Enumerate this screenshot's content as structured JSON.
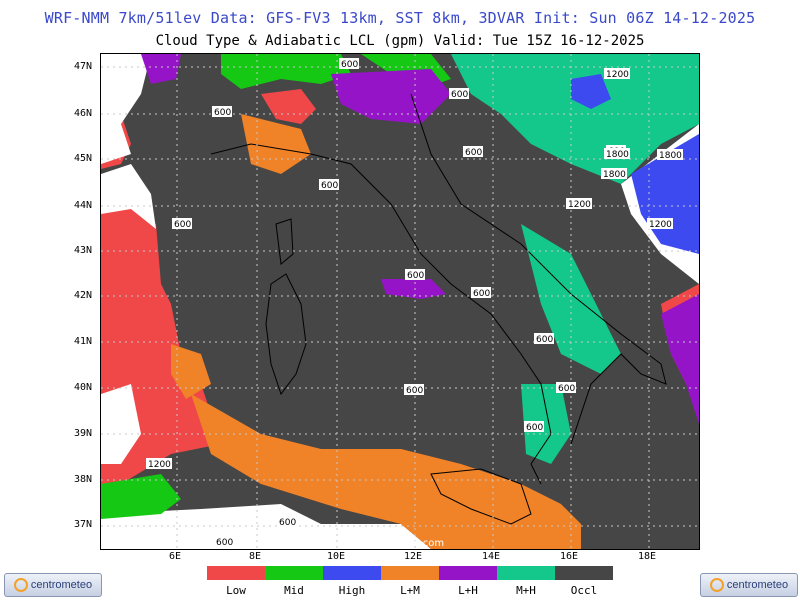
{
  "header": {
    "line1": "WRF-NMM 7km/51lev  Data: GFS-FV3 13km, SST 8km, 3DVAR  Init: Sun 06Z 14-12-2025",
    "line2": "Cloud Type & Adiabatic LCL (gpm)  Valid: Tue 15Z 16-12-2025"
  },
  "map": {
    "lat_labels": [
      "47N",
      "46N",
      "45N",
      "44N",
      "43N",
      "42N",
      "41N",
      "40N",
      "39N",
      "38N",
      "37N"
    ],
    "lon_labels": [
      "6E",
      "8E",
      "10E",
      "12E",
      "14E",
      "16E",
      "18E"
    ],
    "contour_labels": [
      "600",
      "600",
      "600",
      "600",
      "600",
      "600",
      "600",
      "600",
      "600",
      "600",
      "600",
      "600",
      "1200",
      "1800",
      "1800",
      "1200",
      "1800",
      "1200",
      "600",
      "1200",
      "600",
      "600"
    ],
    "watermark": "(C) www.centrometeo.com"
  },
  "legend": {
    "items": [
      {
        "label": "Low",
        "color": "#f04848"
      },
      {
        "label": "Mid",
        "color": "#14c814"
      },
      {
        "label": "High",
        "color": "#3c4af0"
      },
      {
        "label": "L+M",
        "color": "#f08228"
      },
      {
        "label": "L+H",
        "color": "#9614c8"
      },
      {
        "label": "M+H",
        "color": "#14c88c"
      },
      {
        "label": "Occl",
        "color": "#464646"
      }
    ]
  },
  "logos": {
    "left": "centrometeo",
    "right": "centrometeo"
  }
}
